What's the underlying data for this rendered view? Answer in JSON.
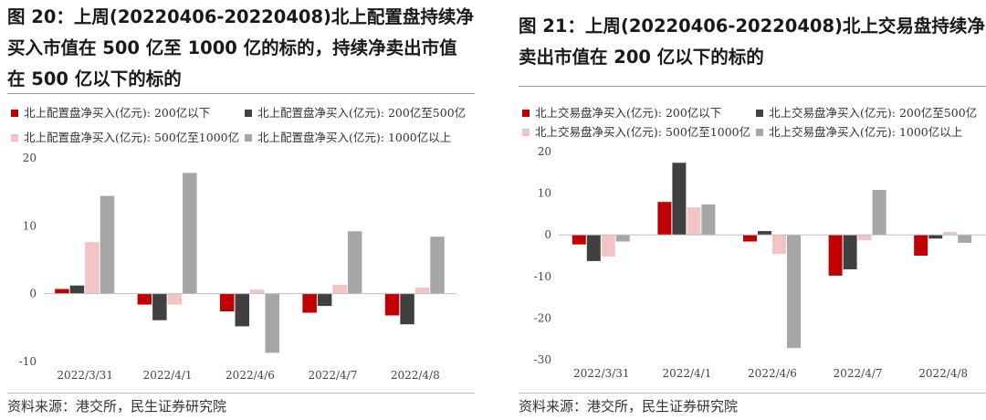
{
  "colors": {
    "s1": "#c00000",
    "s2": "#404040",
    "s3": "#f2c4c4",
    "s4": "#a6a6a6"
  },
  "panels": [
    {
      "title": "图 20：上周(20220406-20220408)北上配置盘持续净买入市值在 500 亿至 1000 亿的标的，持续净卖出市值在 500 亿以下的标的",
      "source": "资料来源：港交所，民生证券研究院",
      "chart_data": {
        "type": "bar",
        "categories": [
          "2022/3/31",
          "2022/4/1",
          "2022/4/6",
          "2022/4/7",
          "2022/4/8"
        ],
        "series": [
          {
            "name": "北上配置盘净买入(亿元): 200亿以下",
            "values": [
              0.7,
              -1.6,
              -2.6,
              -2.8,
              -3.2
            ]
          },
          {
            "name": "北上配置盘净买入(亿元): 200亿至500亿",
            "values": [
              1.2,
              -3.9,
              -4.8,
              -1.8,
              -4.5
            ]
          },
          {
            "name": "北上配置盘净买入(亿元): 500亿至1000亿",
            "values": [
              7.6,
              -1.6,
              0.6,
              1.3,
              0.9
            ]
          },
          {
            "name": "北上配置盘净买入(亿元): 1000亿以上",
            "values": [
              14.4,
              17.8,
              -8.7,
              9.2,
              8.4
            ]
          }
        ],
        "yticks": [
          "20",
          "10",
          "0",
          "-10"
        ],
        "ylim": [
          -10,
          20
        ],
        "xlabel": "",
        "ylabel": "",
        "grid": false,
        "legend_position": "top"
      }
    },
    {
      "title": "图 21：上周(20220406-20220408)北上交易盘持续净卖出市值在 200 亿以下的标的",
      "source": "资料来源：港交所，民生证券研究院",
      "chart_data": {
        "type": "bar",
        "categories": [
          "2022/3/31",
          "2022/4/1",
          "2022/4/6",
          "2022/4/7",
          "2022/4/8"
        ],
        "series": [
          {
            "name": "北上交易盘净买入(亿元): 200亿以下",
            "values": [
              -2.3,
              7.9,
              -1.6,
              -9.8,
              -5.0
            ]
          },
          {
            "name": "北上交易盘净买入(亿元): 200亿至500亿",
            "values": [
              -6.3,
              17.3,
              0.9,
              -8.3,
              -0.9
            ]
          },
          {
            "name": "北上交易盘净买入(亿元): 500亿至1000亿",
            "values": [
              -5.2,
              6.6,
              -4.6,
              -1.3,
              0.7
            ]
          },
          {
            "name": "北上交易盘净买入(亿元): 1000亿以上",
            "values": [
              -1.6,
              7.3,
              -27.2,
              10.8,
              -1.9
            ]
          }
        ],
        "yticks": [
          "20",
          "10",
          "0",
          "-10",
          "-20",
          "-30"
        ],
        "ylim": [
          -30,
          20
        ],
        "xlabel": "",
        "ylabel": "",
        "grid": false,
        "legend_position": "top"
      }
    }
  ]
}
